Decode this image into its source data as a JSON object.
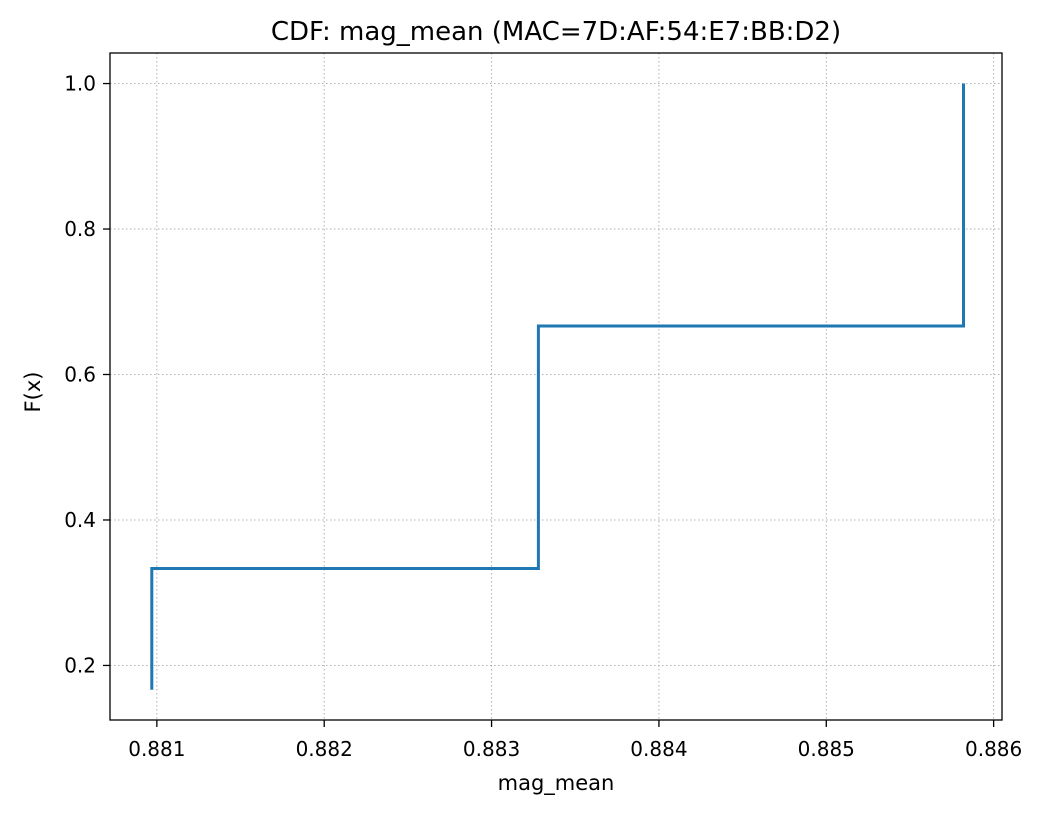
{
  "chart_data": {
    "type": "line",
    "drawstyle": "steps-post",
    "title": "CDF: mag_mean (MAC=7D:AF:54:E7:BB:D2)",
    "xlabel": "mag_mean",
    "ylabel": "F(x)",
    "xlim": [
      0.88072,
      0.88605
    ],
    "ylim": [
      0.125,
      1.042
    ],
    "xticks": [
      0.881,
      0.882,
      0.883,
      0.884,
      0.885,
      0.886
    ],
    "xtick_labels": [
      "0.881",
      "0.882",
      "0.883",
      "0.884",
      "0.885",
      "0.886"
    ],
    "yticks": [
      0.2,
      0.4,
      0.6,
      0.8,
      1.0
    ],
    "ytick_labels": [
      "0.2",
      "0.4",
      "0.6",
      "0.8",
      "1.0"
    ],
    "grid": true,
    "legend": "none",
    "series": [
      {
        "color": "#1f77b4",
        "x": [
          0.88097,
          0.88097,
          0.88328,
          0.88328,
          0.88582,
          0.88582
        ],
        "y": [
          0.1667,
          0.3333,
          0.3333,
          0.6667,
          0.6667,
          1.0
        ]
      }
    ]
  }
}
